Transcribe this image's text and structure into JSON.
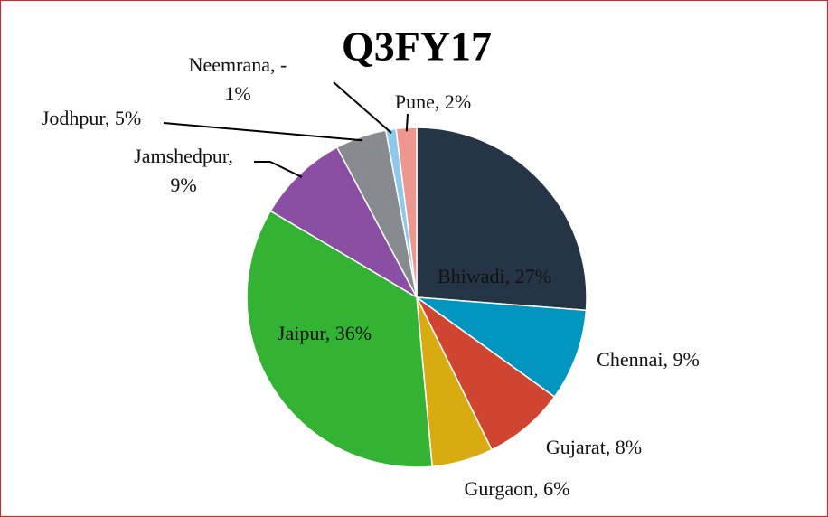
{
  "chart_data": {
    "type": "pie",
    "title": "Q3FY17",
    "categories": [
      "Bhiwadi",
      "Chennai",
      "Gujarat",
      "Gurgaon",
      "Jaipur",
      "Jamshedpur",
      "Jodhpur",
      "Neemrana",
      "Pune"
    ],
    "values": [
      27,
      9,
      8,
      6,
      36,
      9,
      5,
      1,
      2
    ],
    "value_labels": [
      "Bhiwadi, 27%",
      "Chennai, 9%",
      "Gujarat, 8%",
      "Gurgaon, 6%",
      "Jaipur, 36%",
      "Jamshedpur, 9%",
      "Jodhpur, 5%",
      "Neemrana, - 1%",
      "Pune, 2%"
    ],
    "colors": [
      "#263545",
      "#0096c0",
      "#d04530",
      "#d8ac10",
      "#34b233",
      "#8a4fa3",
      "#878a8f",
      "#8ec8ea",
      "#ee9690"
    ]
  }
}
